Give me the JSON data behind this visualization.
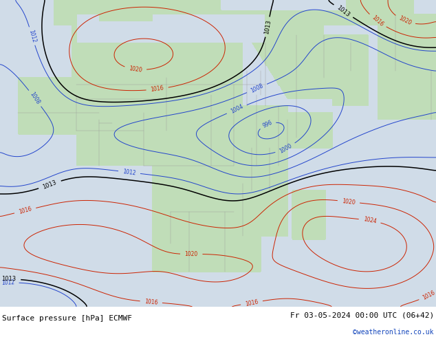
{
  "title_left": "Surface pressure [hPa] ECMWF",
  "title_right": "Fr 03-05-2024 00:00 UTC (06+42)",
  "copyright": "©weatheronline.co.uk",
  "bg_color": "#d0dce8",
  "land_color": "#c0ddb8",
  "border_color": "#999999",
  "fig_width": 6.34,
  "fig_height": 4.9,
  "dpi": 100,
  "font_size_footer": 8,
  "font_size_copyright": 7,
  "text_color_main": "#000000",
  "text_color_copyright": "#1144bb"
}
